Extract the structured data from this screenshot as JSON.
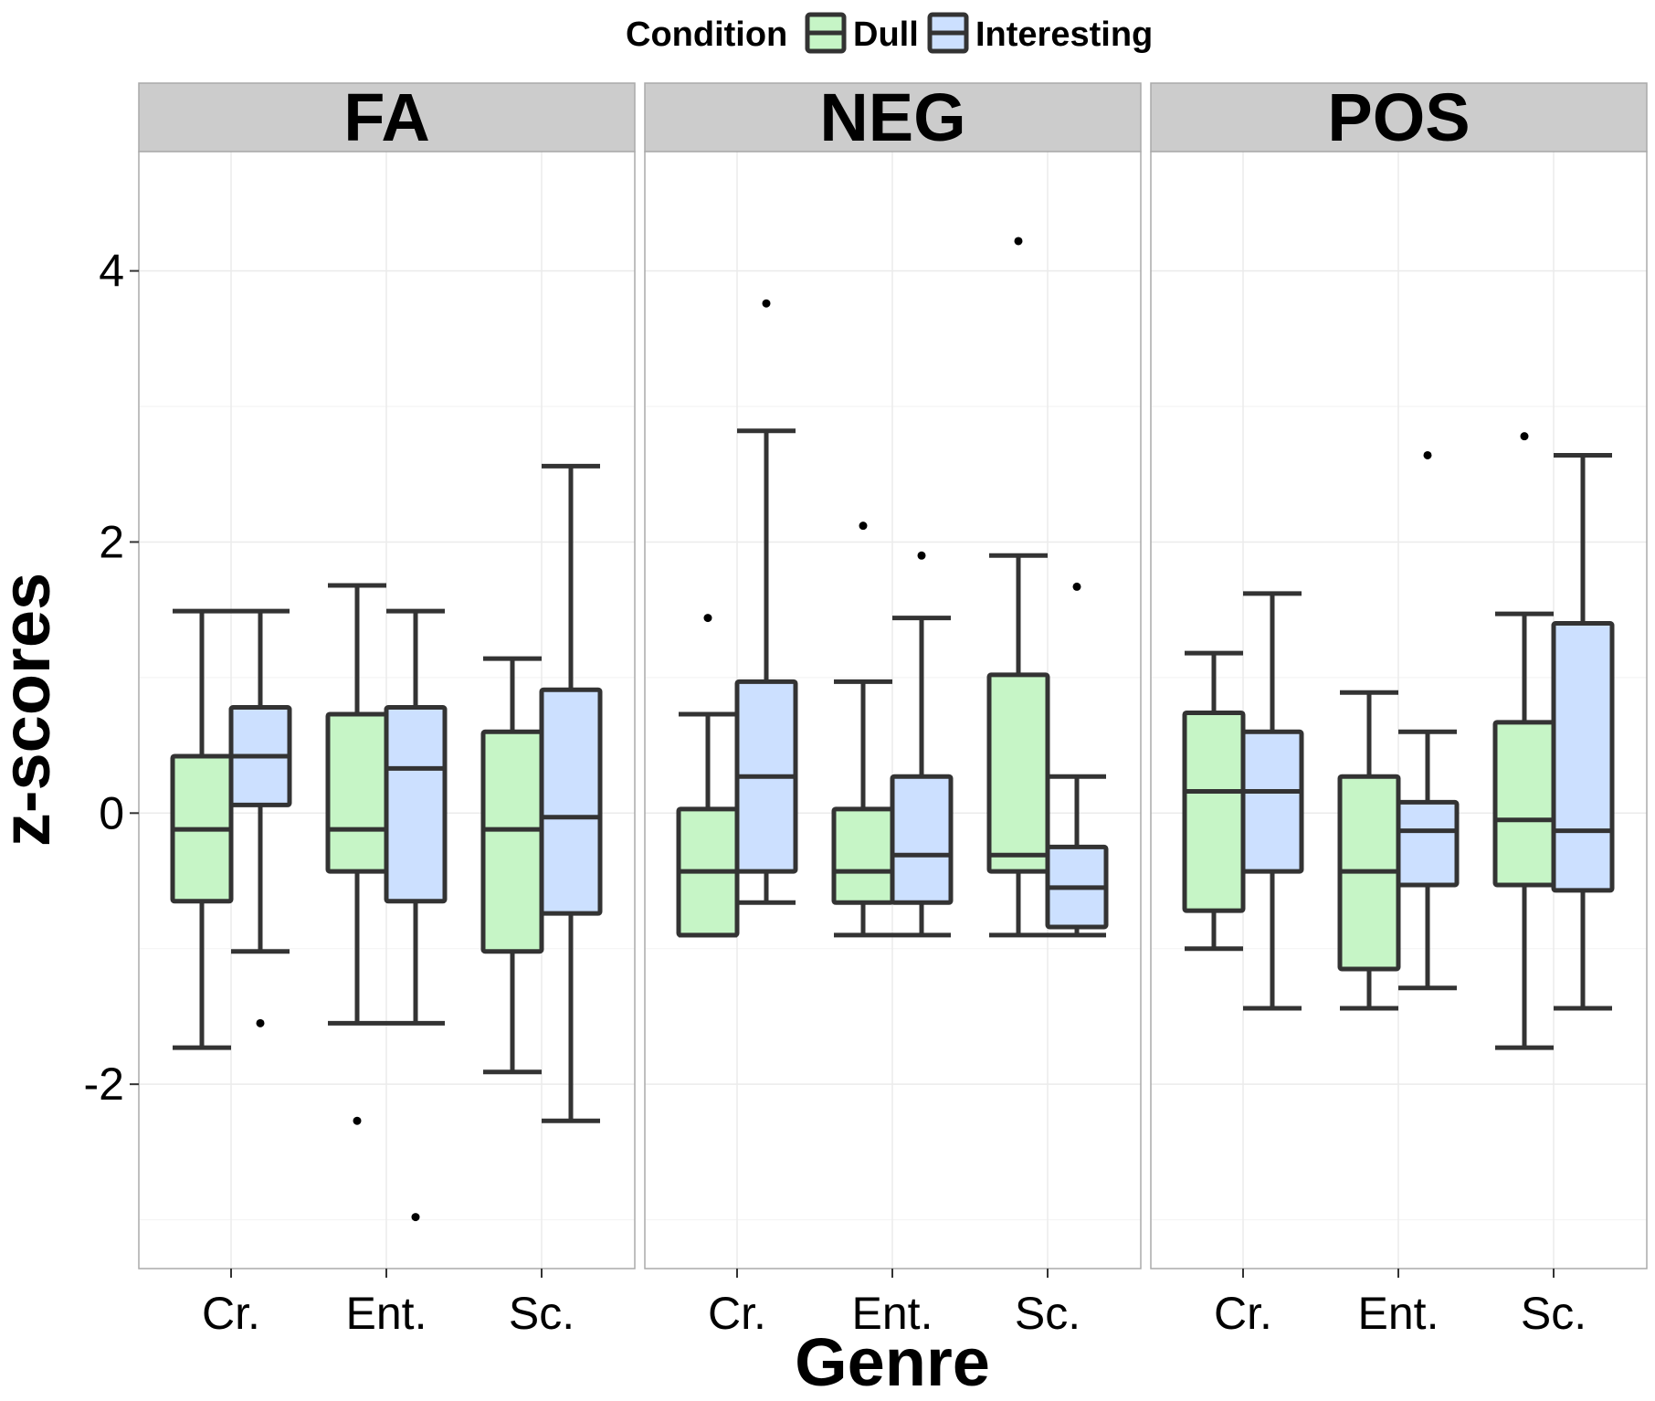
{
  "chart_data": {
    "type": "boxplot",
    "xlabel": "Genre",
    "ylabel": "z-scores",
    "ylim": [
      -3.36,
      4.88
    ],
    "yticks": [
      -2,
      0,
      2,
      4
    ],
    "categories": [
      "Cr.",
      "Ent.",
      "Sc."
    ],
    "legend": {
      "title": "Condition",
      "position": "top"
    },
    "grid": true,
    "series": [
      {
        "name": "Dull",
        "color": "#c6f5c6"
      },
      {
        "name": "Interesting",
        "color": "#cce0ff"
      }
    ],
    "panels": [
      {
        "label": "FA",
        "boxes": [
          {
            "category": "Cr.",
            "series": "Dull",
            "whisker_low": -1.73,
            "q1": -0.65,
            "median": -0.12,
            "q3": 0.42,
            "whisker_high": 1.49,
            "outliers": []
          },
          {
            "category": "Cr.",
            "series": "Interesting",
            "whisker_low": -1.02,
            "q1": 0.06,
            "median": 0.42,
            "q3": 0.78,
            "whisker_high": 1.49,
            "outliers": [
              -1.55
            ]
          },
          {
            "category": "Ent.",
            "series": "Dull",
            "whisker_low": -1.55,
            "q1": -0.43,
            "median": -0.12,
            "q3": 0.73,
            "whisker_high": 1.68,
            "outliers": [
              -2.27
            ]
          },
          {
            "category": "Ent.",
            "series": "Interesting",
            "whisker_low": -1.55,
            "q1": -0.65,
            "median": 0.33,
            "q3": 0.78,
            "whisker_high": 1.49,
            "outliers": [
              -2.98
            ]
          },
          {
            "category": "Sc.",
            "series": "Dull",
            "whisker_low": -1.91,
            "q1": -1.02,
            "median": -0.12,
            "q3": 0.6,
            "whisker_high": 1.14,
            "outliers": []
          },
          {
            "category": "Sc.",
            "series": "Interesting",
            "whisker_low": -2.27,
            "q1": -0.74,
            "median": -0.03,
            "q3": 0.91,
            "whisker_high": 2.56,
            "outliers": []
          }
        ]
      },
      {
        "label": "NEG",
        "boxes": [
          {
            "category": "Cr.",
            "series": "Dull",
            "whisker_low": -0.9,
            "q1": -0.9,
            "median": -0.43,
            "q3": 0.03,
            "whisker_high": 0.73,
            "outliers": [
              1.44
            ]
          },
          {
            "category": "Cr.",
            "series": "Interesting",
            "whisker_low": -0.66,
            "q1": -0.43,
            "median": 0.27,
            "q3": 0.97,
            "whisker_high": 2.82,
            "outliers": [
              3.76
            ]
          },
          {
            "category": "Ent.",
            "series": "Dull",
            "whisker_low": -0.9,
            "q1": -0.66,
            "median": -0.43,
            "q3": 0.03,
            "whisker_high": 0.97,
            "outliers": [
              2.12
            ]
          },
          {
            "category": "Ent.",
            "series": "Interesting",
            "whisker_low": -0.9,
            "q1": -0.66,
            "median": -0.31,
            "q3": 0.27,
            "whisker_high": 1.44,
            "outliers": [
              1.9
            ]
          },
          {
            "category": "Sc.",
            "series": "Dull",
            "whisker_low": -0.9,
            "q1": -0.43,
            "median": -0.31,
            "q3": 1.02,
            "whisker_high": 1.9,
            "outliers": [
              4.22
            ]
          },
          {
            "category": "Sc.",
            "series": "Interesting",
            "whisker_low": -0.9,
            "q1": -0.84,
            "median": -0.55,
            "q3": -0.25,
            "whisker_high": 0.27,
            "outliers": [
              1.67
            ]
          }
        ]
      },
      {
        "label": "POS",
        "boxes": [
          {
            "category": "Cr.",
            "series": "Dull",
            "whisker_low": -1.0,
            "q1": -0.72,
            "median": 0.16,
            "q3": 0.74,
            "whisker_high": 1.18,
            "outliers": []
          },
          {
            "category": "Cr.",
            "series": "Interesting",
            "whisker_low": -1.44,
            "q1": -0.43,
            "median": 0.16,
            "q3": 0.6,
            "whisker_high": 1.62,
            "outliers": []
          },
          {
            "category": "Ent.",
            "series": "Dull",
            "whisker_low": -1.44,
            "q1": -1.15,
            "median": -0.43,
            "q3": 0.27,
            "whisker_high": 0.89,
            "outliers": []
          },
          {
            "category": "Ent.",
            "series": "Interesting",
            "whisker_low": -1.29,
            "q1": -0.53,
            "median": -0.13,
            "q3": 0.08,
            "whisker_high": 0.6,
            "outliers": [
              2.64
            ]
          },
          {
            "category": "Sc.",
            "series": "Dull",
            "whisker_low": -1.73,
            "q1": -0.53,
            "median": -0.05,
            "q3": 0.67,
            "whisker_high": 1.47,
            "outliers": [
              2.78
            ]
          },
          {
            "category": "Sc.",
            "series": "Interesting",
            "whisker_low": -1.44,
            "q1": -0.57,
            "median": -0.13,
            "q3": 1.4,
            "whisker_high": 2.64,
            "outliers": []
          }
        ]
      }
    ]
  }
}
